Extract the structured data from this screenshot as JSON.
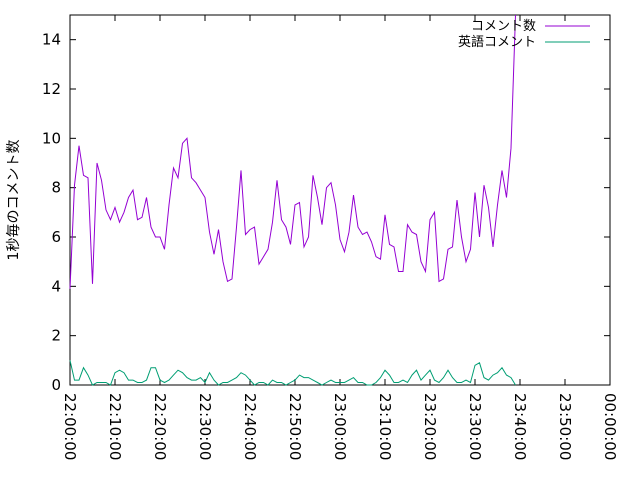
{
  "chart_data": {
    "type": "line",
    "ylabel": "1秒毎のコメント数",
    "xlabel": "",
    "ylim": [
      0,
      15
    ],
    "xlim": [
      "22:00:00",
      "00:00:00"
    ],
    "x_tick_labels": [
      "22:00:00",
      "22:10:00",
      "22:20:00",
      "22:30:00",
      "22:40:00",
      "22:50:00",
      "23:00:00",
      "23:10:00",
      "23:20:00",
      "23:30:00",
      "23:40:00",
      "23:50:00",
      "00:00:00"
    ],
    "y_tick_labels": [
      "0",
      "2",
      "4",
      "6",
      "8",
      "10",
      "12",
      "14"
    ],
    "y_ticks": [
      0,
      2,
      4,
      6,
      8,
      10,
      12,
      14
    ],
    "grid": false,
    "legend_position": "top-right",
    "x_interval_minutes": 1,
    "series": [
      {
        "name": "コメント数",
        "color": "#9400d3",
        "values": [
          3.9,
          8.1,
          9.7,
          8.5,
          8.4,
          4.1,
          9.0,
          8.3,
          7.1,
          6.7,
          7.2,
          6.6,
          7.0,
          7.6,
          7.9,
          6.7,
          6.8,
          7.6,
          6.4,
          6.0,
          6.0,
          5.5,
          7.3,
          8.8,
          8.4,
          9.8,
          10.0,
          8.4,
          8.2,
          7.9,
          7.6,
          6.2,
          5.3,
          6.3,
          5.0,
          4.2,
          4.3,
          6.4,
          8.7,
          6.1,
          6.3,
          6.4,
          4.9,
          5.2,
          5.5,
          6.6,
          8.3,
          6.7,
          6.4,
          5.7,
          7.3,
          7.4,
          5.6,
          6.0,
          8.5,
          7.6,
          6.5,
          8.0,
          8.2,
          7.3,
          5.9,
          5.4,
          6.2,
          7.7,
          6.4,
          6.1,
          6.2,
          5.8,
          5.2,
          5.1,
          6.9,
          5.7,
          5.6,
          4.6,
          4.6,
          6.5,
          6.2,
          6.1,
          5.0,
          4.6,
          6.7,
          7.0,
          4.2,
          4.3,
          5.5,
          5.6,
          7.5,
          6.0,
          5.0,
          5.5,
          7.8,
          6.0,
          8.1,
          7.2,
          5.6,
          7.3,
          8.7,
          7.6,
          9.6,
          15.0
        ]
      },
      {
        "name": "英語コメント",
        "color": "#009e73",
        "values": [
          1.0,
          0.2,
          0.2,
          0.7,
          0.4,
          0.0,
          0.1,
          0.1,
          0.1,
          0.0,
          0.5,
          0.6,
          0.5,
          0.2,
          0.2,
          0.1,
          0.1,
          0.2,
          0.7,
          0.7,
          0.2,
          0.1,
          0.2,
          0.4,
          0.6,
          0.5,
          0.3,
          0.2,
          0.2,
          0.3,
          0.1,
          0.5,
          0.2,
          0.0,
          0.1,
          0.1,
          0.2,
          0.3,
          0.5,
          0.4,
          0.2,
          0.0,
          0.1,
          0.1,
          0.0,
          0.2,
          0.1,
          0.1,
          0.0,
          0.1,
          0.2,
          0.4,
          0.3,
          0.3,
          0.2,
          0.1,
          0.0,
          0.1,
          0.2,
          0.1,
          0.1,
          0.1,
          0.2,
          0.3,
          0.1,
          0.1,
          0.0,
          0.0,
          0.1,
          0.3,
          0.6,
          0.4,
          0.1,
          0.1,
          0.2,
          0.1,
          0.4,
          0.6,
          0.2,
          0.4,
          0.6,
          0.2,
          0.1,
          0.3,
          0.6,
          0.3,
          0.1,
          0.1,
          0.2,
          0.1,
          0.8,
          0.9,
          0.3,
          0.2,
          0.4,
          0.5,
          0.7,
          0.4,
          0.3,
          0.0
        ]
      }
    ]
  }
}
